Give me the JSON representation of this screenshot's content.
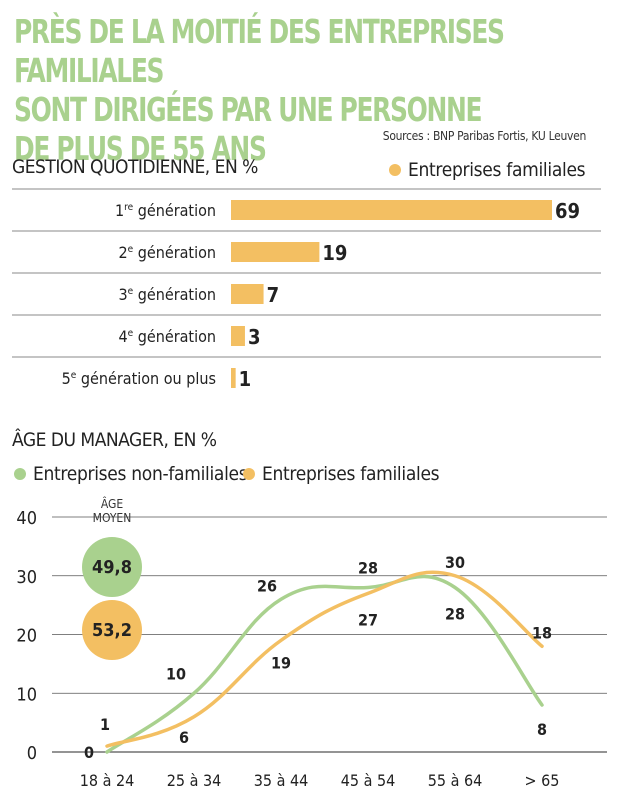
{
  "title": "PRÈS DE LA MOITIÉ DES ENTREPRISES FAMILIALES SONT DIRIGÉES PAR UNE PERSONNE DE PLUS DE 55 ANS",
  "title_lines": [
    "PRÈS DE LA MOITIÉ DES ENTREPRISES FAMILIALES",
    "SONT DIRIGÉES PAR UNE PERSONNE",
    "DE PLUS DE 55 ANS"
  ],
  "sources": "Sources : BNP Paribas Fortis, KU Leuven",
  "colors": {
    "familiales": "#f3bf62",
    "non_familiales": "#a9d18e",
    "grid": "#555555"
  },
  "chart_data": [
    {
      "type": "bar",
      "title": "GESTION QUOTIDIENNE, EN %",
      "legend": {
        "label": "Entreprises familiales",
        "position": "top-right"
      },
      "categories": [
        {
          "num": "1",
          "sup": "re",
          "rest": " génération"
        },
        {
          "num": "2",
          "sup": "e",
          "rest": " génération"
        },
        {
          "num": "3",
          "sup": "e",
          "rest": " génération"
        },
        {
          "num": "4",
          "sup": "e",
          "rest": " génération"
        },
        {
          "num": "5",
          "sup": "e",
          "rest": " génération ou plus"
        }
      ],
      "values": [
        69,
        19,
        7,
        3,
        1
      ],
      "value_labels": [
        "69",
        "19",
        "7",
        "3",
        "1"
      ],
      "series_name": "Entreprises familiales"
    },
    {
      "type": "line",
      "title": "ÂGE DU MANAGER, EN %",
      "categories": [
        "18 à 24",
        "25 à 34",
        "35 à 44",
        "45 à 54",
        "55 à 64",
        "> 65"
      ],
      "ylim": [
        0,
        40
      ],
      "yticks": [
        "0",
        "10",
        "20",
        "30",
        "40"
      ],
      "grid": true,
      "series": [
        {
          "name": "Entreprises non-familiales",
          "values": [
            0,
            10,
            26,
            28,
            28,
            8
          ],
          "labels": [
            "0",
            "10",
            "26",
            "28",
            "28",
            "8"
          ]
        },
        {
          "name": "Entreprises familiales",
          "values": [
            1,
            6,
            19,
            27,
            30,
            18
          ],
          "labels": [
            "1",
            "6",
            "19",
            "27",
            "30",
            "18"
          ]
        }
      ],
      "average_age": {
        "label_line1": "ÂGE",
        "label_line2": "MOYEN",
        "non_familiales": "49,8",
        "familiales": "53,2"
      }
    }
  ]
}
